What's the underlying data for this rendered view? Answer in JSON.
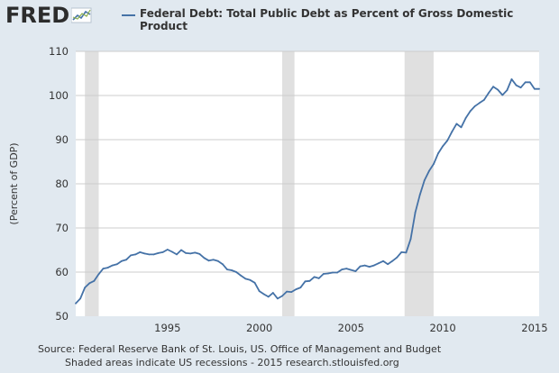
{
  "brand": {
    "logo_text": "FRED"
  },
  "legend": {
    "series_label": "Federal Debt: Total Public Debt as Percent of Gross Domestic Product"
  },
  "footer": {
    "source": "Source: Federal Reserve Bank of St. Louis, US. Office of Management and Budget",
    "note": "Shaded areas indicate US recessions - 2015 research.stlouisfed.org"
  },
  "colors": {
    "line": "#4572a7",
    "recession": "#e0e0e0",
    "plot_bg": "#ffffff",
    "page_bg": "#e1e9f0",
    "grid": "#cccccc"
  },
  "chart_data": {
    "type": "line",
    "title": "",
    "xlabel": "",
    "ylabel": "(Percent of GDP)",
    "xlim": [
      1990.0,
      2015.25
    ],
    "ylim": [
      50,
      110
    ],
    "x_ticks": [
      1995,
      2000,
      2005,
      2010,
      2015
    ],
    "y_ticks": [
      50,
      60,
      70,
      80,
      90,
      100,
      110
    ],
    "grid": true,
    "legend_position": "top",
    "recessions": [
      [
        1990.5,
        1991.25
      ],
      [
        2001.25,
        2001.917
      ],
      [
        2007.917,
        2009.5
      ]
    ],
    "series": [
      {
        "name": "Federal Debt: Total Public Debt as Percent of Gross Domestic Product",
        "x": [
          1990.0,
          1990.25,
          1990.5,
          1990.75,
          1991.0,
          1991.25,
          1991.5,
          1991.75,
          1992.0,
          1992.25,
          1992.5,
          1992.75,
          1993.0,
          1993.25,
          1993.5,
          1993.75,
          1994.0,
          1994.25,
          1994.5,
          1994.75,
          1995.0,
          1995.25,
          1995.5,
          1995.75,
          1996.0,
          1996.25,
          1996.5,
          1996.75,
          1997.0,
          1997.25,
          1997.5,
          1997.75,
          1998.0,
          1998.25,
          1998.5,
          1998.75,
          1999.0,
          1999.25,
          1999.5,
          1999.75,
          2000.0,
          2000.25,
          2000.5,
          2000.75,
          2001.0,
          2001.25,
          2001.5,
          2001.75,
          2002.0,
          2002.25,
          2002.5,
          2002.75,
          2003.0,
          2003.25,
          2003.5,
          2003.75,
          2004.0,
          2004.25,
          2004.5,
          2004.75,
          2005.0,
          2005.25,
          2005.5,
          2005.75,
          2006.0,
          2006.25,
          2006.5,
          2006.75,
          2007.0,
          2007.25,
          2007.5,
          2007.75,
          2008.0,
          2008.25,
          2008.5,
          2008.75,
          2009.0,
          2009.25,
          2009.5,
          2009.75,
          2010.0,
          2010.25,
          2010.5,
          2010.75,
          2011.0,
          2011.25,
          2011.5,
          2011.75,
          2012.0,
          2012.25,
          2012.5,
          2012.75,
          2013.0,
          2013.25,
          2013.5,
          2013.75,
          2014.0,
          2014.25,
          2014.5,
          2014.75,
          2015.0,
          2015.25
        ],
        "values": [
          52.9,
          54.0,
          56.5,
          57.5,
          58.0,
          59.5,
          60.8,
          61.0,
          61.5,
          61.8,
          62.5,
          62.8,
          63.8,
          64.0,
          64.5,
          64.2,
          64.0,
          64.0,
          64.3,
          64.5,
          65.1,
          64.6,
          64.0,
          65.0,
          64.3,
          64.2,
          64.4,
          64.1,
          63.2,
          62.6,
          62.8,
          62.5,
          61.8,
          60.6,
          60.4,
          60.0,
          59.2,
          58.5,
          58.2,
          57.6,
          55.7,
          55.0,
          54.4,
          55.3,
          54.0,
          54.6,
          55.6,
          55.5,
          56.1,
          56.5,
          57.9,
          58.0,
          58.9,
          58.6,
          59.6,
          59.7,
          59.9,
          59.9,
          60.6,
          60.8,
          60.5,
          60.2,
          61.3,
          61.5,
          61.2,
          61.5,
          62.0,
          62.5,
          61.8,
          62.5,
          63.3,
          64.5,
          64.4,
          67.5,
          73.5,
          77.5,
          80.8,
          82.9,
          84.5,
          86.9,
          88.5,
          89.8,
          91.8,
          93.6,
          92.8,
          94.9,
          96.5,
          97.6,
          98.3,
          99.0,
          100.6,
          102.0,
          101.3,
          100.1,
          101.2,
          103.7,
          102.3,
          101.8,
          103.0,
          103.0,
          101.5,
          101.5
        ]
      }
    ]
  }
}
